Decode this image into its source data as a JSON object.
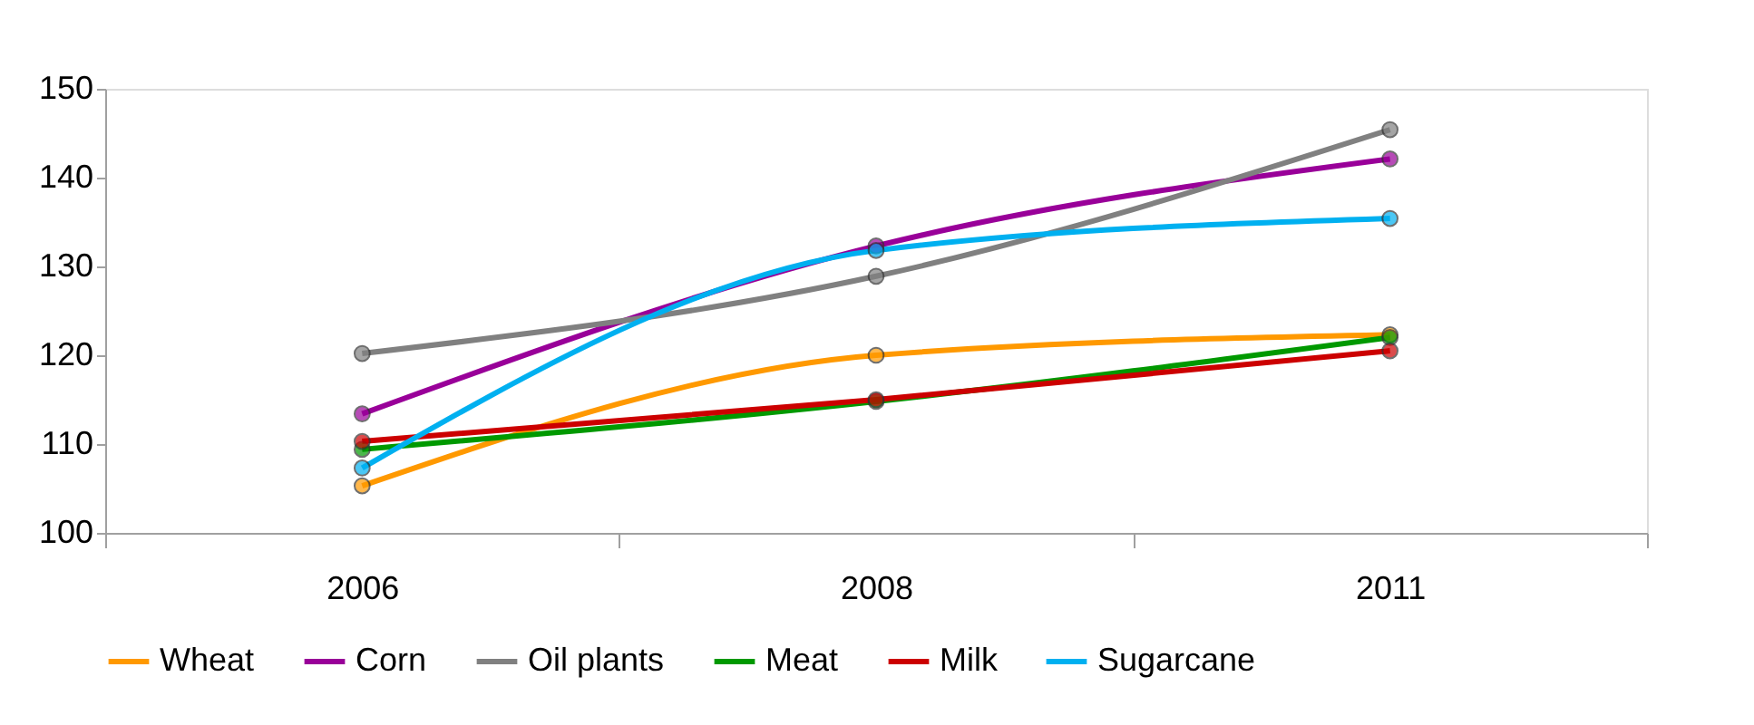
{
  "chart_data": {
    "type": "line",
    "categories": [
      "2006",
      "2008",
      "2011"
    ],
    "series": [
      {
        "name": "Wheat",
        "color": "#ff9900",
        "values": [
          105.3,
          120.0,
          122.3
        ]
      },
      {
        "name": "Corn",
        "color": "#990099",
        "values": [
          113.4,
          132.3,
          142.1
        ]
      },
      {
        "name": "Oil plants",
        "color": "#808080",
        "values": [
          120.2,
          128.9,
          145.4
        ]
      },
      {
        "name": "Meat",
        "color": "#009900",
        "values": [
          109.4,
          114.8,
          122.0
        ]
      },
      {
        "name": "Milk",
        "color": "#cc0000",
        "values": [
          110.3,
          115.0,
          120.5
        ]
      },
      {
        "name": "Sugarcane",
        "color": "#00b0f0",
        "values": [
          107.3,
          131.8,
          135.4
        ]
      }
    ],
    "ylim": [
      100,
      150
    ],
    "yticks": [
      100,
      110,
      120,
      130,
      140,
      150
    ],
    "grid": false,
    "legend": "bottom",
    "marker": "circle",
    "line_style": "solid"
  }
}
